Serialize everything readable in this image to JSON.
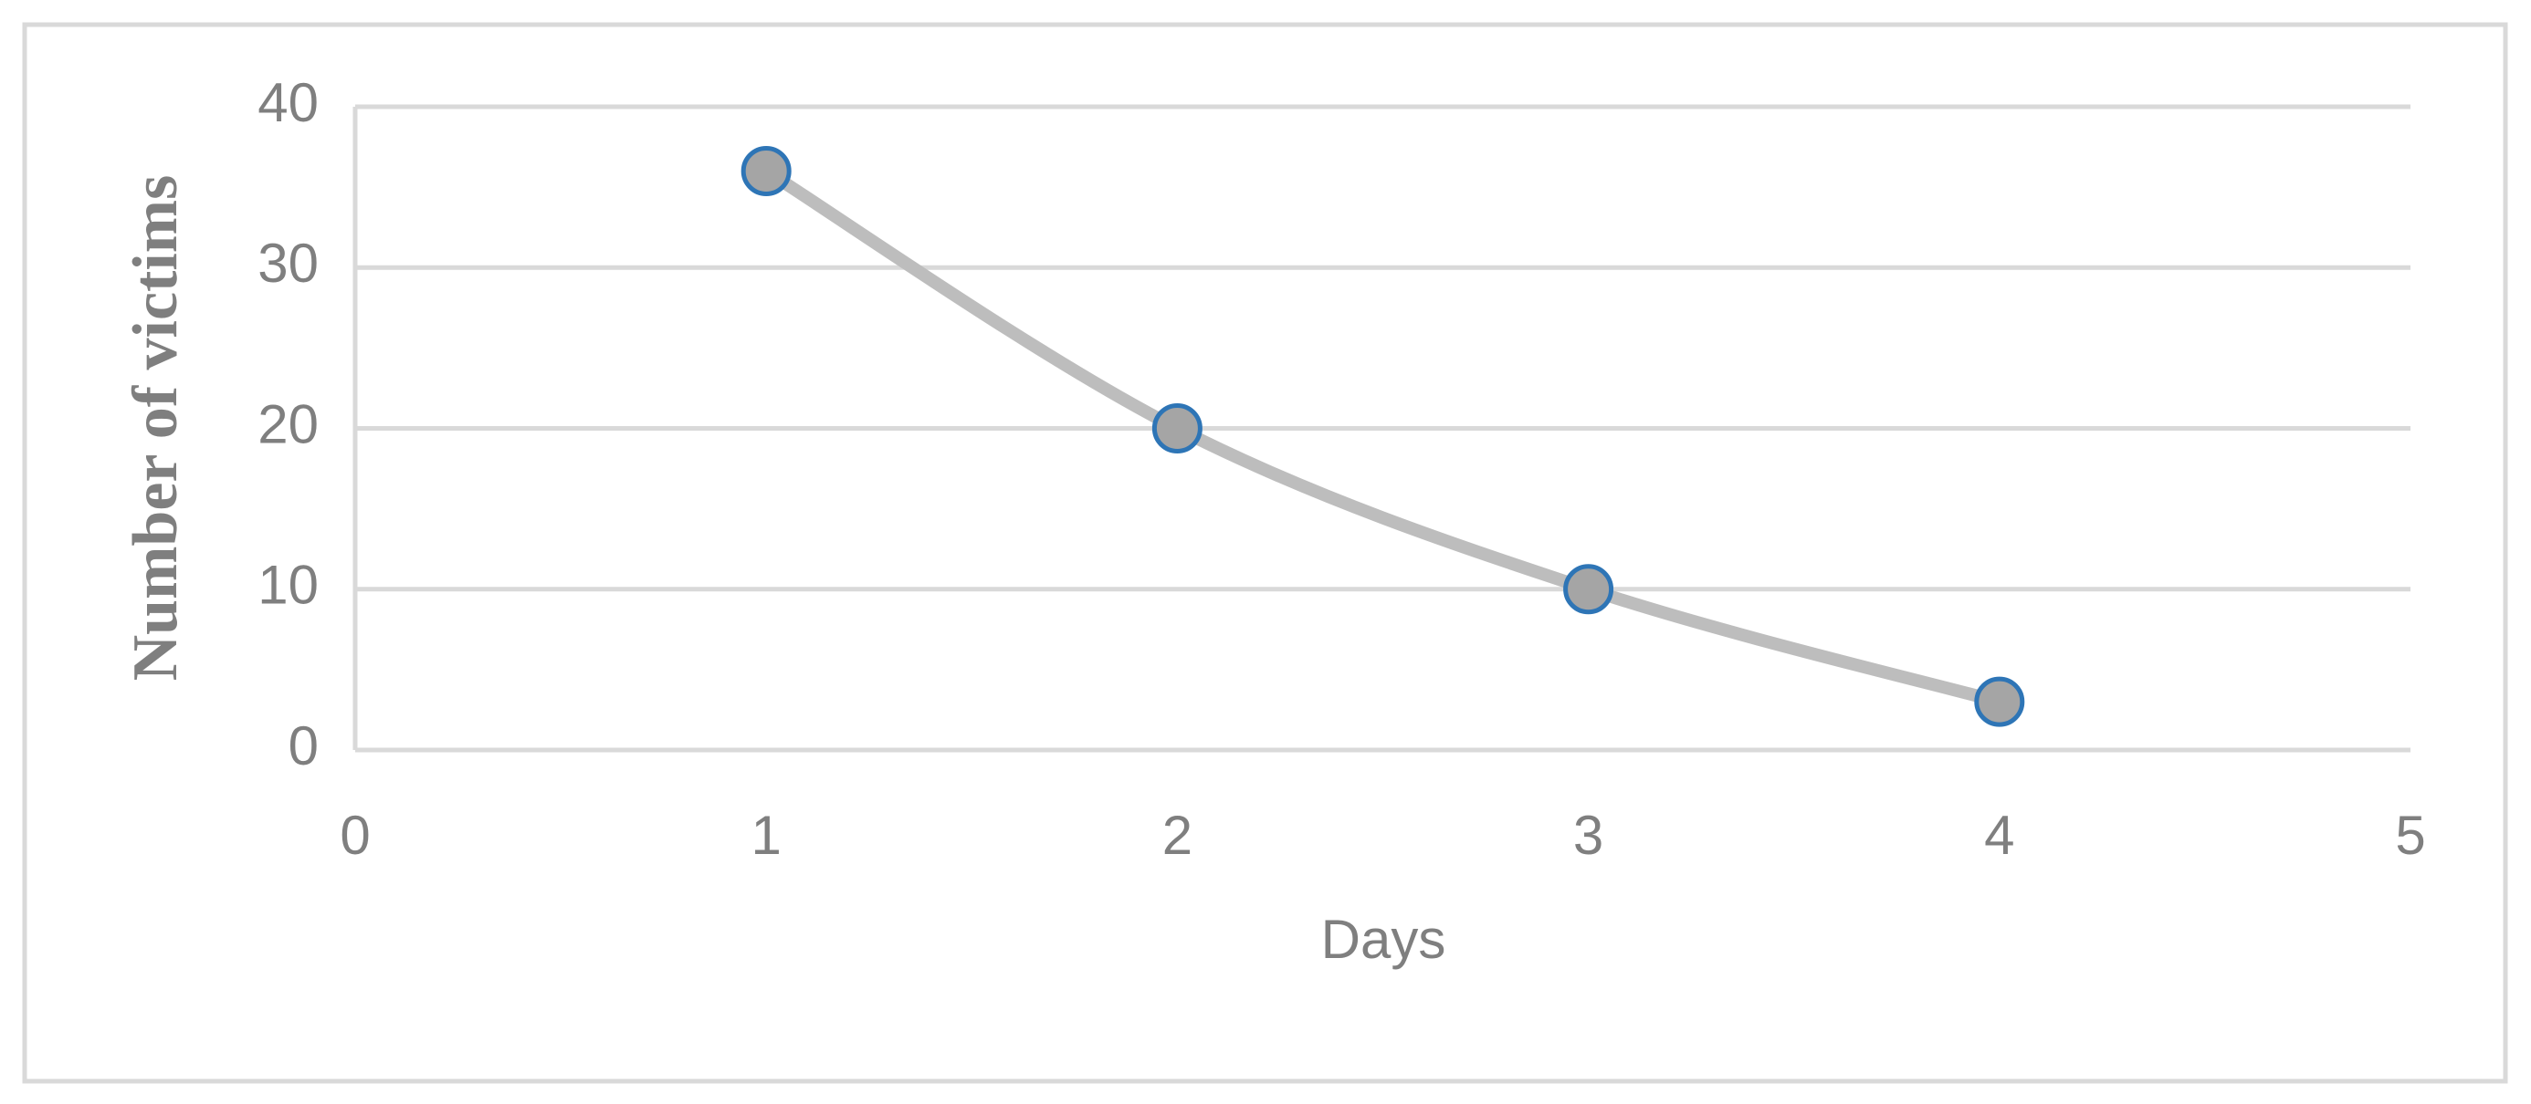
{
  "chart_data": {
    "type": "line",
    "xlabel": "Days",
    "ylabel": "Number of victims",
    "x": [
      1,
      2,
      3,
      4
    ],
    "values": [
      36,
      20,
      10,
      3
    ],
    "color": "#bdbdbd",
    "marker_color": "#a5a5a5",
    "marker_edge_color": "#2e75b6",
    "xlim": [
      0,
      5
    ],
    "ylim": [
      0,
      40
    ],
    "xticks": [
      0,
      1,
      2,
      3,
      4,
      5
    ],
    "yticks": [
      0,
      10,
      20,
      30,
      40
    ],
    "grid": true,
    "smooth": true
  }
}
